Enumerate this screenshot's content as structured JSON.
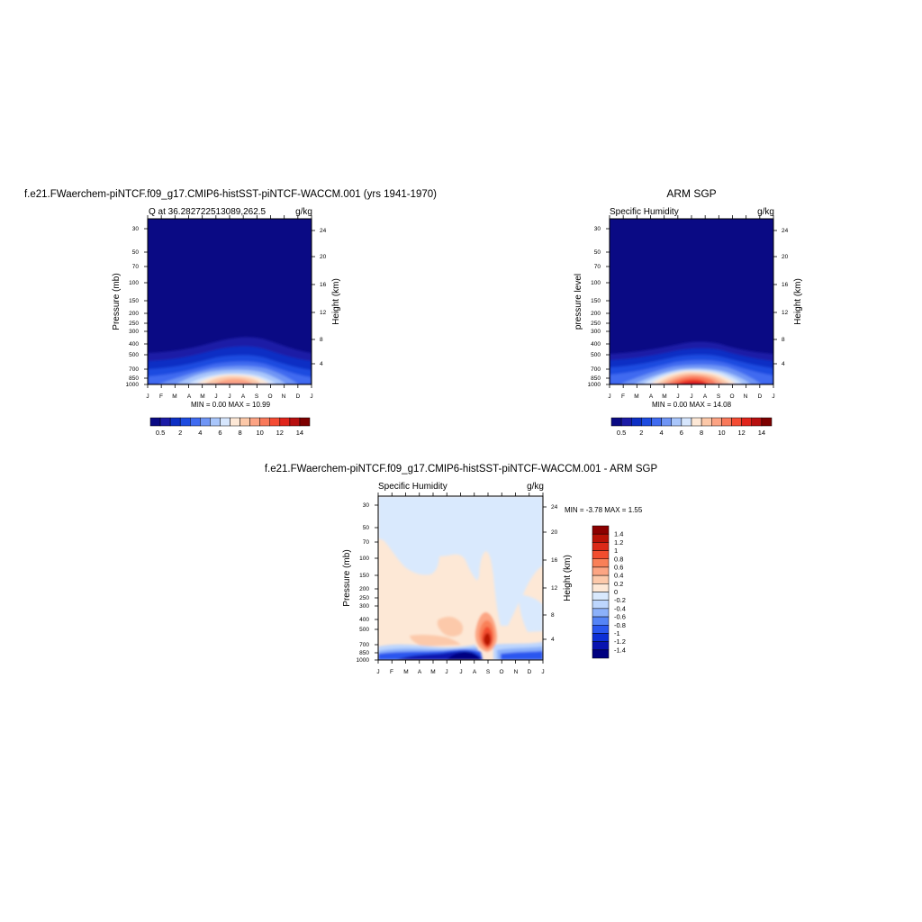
{
  "colors": {
    "seq": [
      "#0a0a84",
      "#1b1ba6",
      "#0d2fc4",
      "#1d4be0",
      "#3f6bf0",
      "#6f95f5",
      "#a9c6fb",
      "#d6e6fd",
      "#fde8d6",
      "#fcc8a8",
      "#fca383",
      "#f9795a",
      "#f44b33",
      "#e0241b",
      "#b70f0f",
      "#7d0000"
    ],
    "div": [
      "#000080",
      "#0a14b0",
      "#0d2fd6",
      "#2a57ef",
      "#5584f6",
      "#8cb1fa",
      "#bdd6fd",
      "#d9e9fd",
      "#fde8d6",
      "#fcc9aa",
      "#fca583",
      "#f98058",
      "#f24d2f",
      "#db2a18",
      "#b81206",
      "#8b0000"
    ],
    "seq_labels": [
      "0.5",
      "2",
      "4",
      "6",
      "8",
      "10",
      "12",
      "14"
    ],
    "div_labels": [
      "1.4",
      "1.2",
      "1",
      "0.8",
      "0.6",
      "0.4",
      "0.2",
      "0",
      "-0.2",
      "-0.4",
      "-0.6",
      "-0.8",
      "-1",
      "-1.2",
      "-1.4"
    ]
  },
  "chart_data": [
    {
      "type": "heatmap",
      "title": "f.e21.FWaerchem-piNTCF.f09_g17.CMIP6-histSST-piNTCF-WACCM.001 (yrs 1941-1970)",
      "left_string": "Q at 36.282722513089,262.5",
      "right_string": "g/kg",
      "ylabel": "Pressure (mb)",
      "ylabel_right": "Height (km)",
      "stats": "MIN =   0.00 MAX =   10.99",
      "x_ticks": [
        "J",
        "F",
        "M",
        "A",
        "M",
        "J",
        "J",
        "A",
        "S",
        "O",
        "N",
        "D",
        "J"
      ],
      "y_ticks": [
        "30",
        "50",
        "70",
        "100",
        "150",
        "200",
        "250",
        "300",
        "400",
        "500",
        "700",
        "850",
        "1000"
      ],
      "height_ticks": [
        "24",
        "20",
        "16",
        "12",
        "8",
        "4"
      ],
      "ylim": [
        1000,
        25
      ],
      "y_scale": "log",
      "colorbar_levels": [
        0.5,
        1,
        2,
        3,
        4,
        5,
        6,
        7,
        8,
        9,
        10,
        11,
        12,
        13,
        14
      ],
      "max_value": 10.99,
      "peak_month": "Jul"
    },
    {
      "type": "heatmap",
      "title": "ARM SGP",
      "left_string": "Specific Humidity",
      "right_string": "g/kg",
      "ylabel": "pressure level",
      "ylabel_right": "Height (km)",
      "stats": "MIN =   0.00 MAX =   14.08",
      "x_ticks": [
        "J",
        "F",
        "M",
        "A",
        "M",
        "J",
        "J",
        "A",
        "S",
        "O",
        "N",
        "D",
        "J"
      ],
      "y_ticks": [
        "30",
        "50",
        "70",
        "100",
        "150",
        "200",
        "250",
        "300",
        "400",
        "500",
        "700",
        "850",
        "1000"
      ],
      "height_ticks": [
        "24",
        "20",
        "16",
        "12",
        "8",
        "4"
      ],
      "ylim": [
        1000,
        25
      ],
      "y_scale": "log",
      "colorbar_levels": [
        0.5,
        1,
        2,
        3,
        4,
        5,
        6,
        7,
        8,
        9,
        10,
        11,
        12,
        13,
        14
      ],
      "max_value": 14.08,
      "peak_month": "Jul"
    },
    {
      "type": "heatmap",
      "title": "f.e21.FWaerchem-piNTCF.f09_g17.CMIP6-histSST-piNTCF-WACCM.001 - ARM SGP",
      "left_string": "Specific Humidity",
      "right_string": "g/kg",
      "ylabel": "Pressure (mb)",
      "ylabel_right": "Height (km)",
      "stats": "MIN =  -3.78 MAX =    1.55",
      "x_ticks": [
        "J",
        "F",
        "M",
        "A",
        "M",
        "J",
        "J",
        "A",
        "S",
        "O",
        "N",
        "D",
        "J"
      ],
      "y_ticks": [
        "30",
        "50",
        "70",
        "100",
        "150",
        "200",
        "250",
        "300",
        "400",
        "500",
        "700",
        "850",
        "1000"
      ],
      "height_ticks": [
        "24",
        "20",
        "16",
        "12",
        "8",
        "4"
      ],
      "ylim": [
        1000,
        25
      ],
      "y_scale": "log",
      "colorbar_levels": [
        -1.4,
        -1.2,
        -1,
        -0.8,
        -0.6,
        -0.4,
        -0.2,
        0,
        0.2,
        0.4,
        0.6,
        0.8,
        1,
        1.2,
        1.4
      ],
      "min_value": -3.78,
      "max_value": 1.55
    }
  ]
}
